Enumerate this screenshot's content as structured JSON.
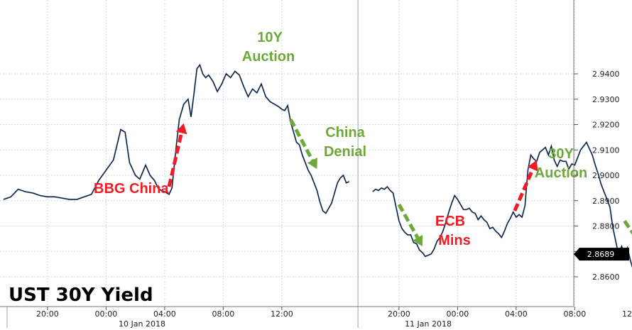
{
  "chart_data": {
    "type": "line",
    "title": "UST 30Y Yield",
    "ylim": [
      2.852,
      2.946
    ],
    "y_ticks": [
      2.86,
      2.87,
      2.88,
      2.89,
      2.9,
      2.91,
      2.92,
      2.93,
      2.94
    ],
    "y_tick_labels": [
      "2.8600",
      "2.8700",
      "2.8800",
      "2.8900",
      "2.9000",
      "2.9100",
      "2.9200",
      "2.9300",
      "2.9400"
    ],
    "x_tick_labels": [
      "20:00",
      "00:00",
      "04:00",
      "08:00",
      "12:00",
      "20:00",
      "00:00",
      "04:00",
      "08:00",
      "12:00"
    ],
    "date_labels": [
      "10 Jan 2018",
      "11 Jan 2018"
    ],
    "last_value_label": "2.8689",
    "grid": true,
    "series": [
      {
        "segments": [
          [
            [
              17.0,
              2.8905
            ],
            [
              17.5,
              2.8915
            ],
            [
              18.0,
              2.8945
            ],
            [
              18.5,
              2.8935
            ],
            [
              19.0,
              2.893
            ],
            [
              19.5,
              2.892
            ],
            [
              20.0,
              2.8915
            ],
            [
              20.5,
              2.8915
            ],
            [
              21.0,
              2.891
            ],
            [
              21.5,
              2.8905
            ],
            [
              22.0,
              2.8905
            ],
            [
              22.5,
              2.8915
            ],
            [
              23.0,
              2.8925
            ],
            [
              23.5,
              2.898
            ],
            [
              24.0,
              2.902
            ],
            [
              24.5,
              2.906
            ],
            [
              25.0,
              2.918
            ],
            [
              25.3,
              2.917
            ],
            [
              25.6,
              2.905
            ],
            [
              26.0,
              2.9
            ],
            [
              26.3,
              2.8985
            ],
            [
              26.7,
              2.904
            ],
            [
              27.0,
              2.9
            ],
            [
              27.3,
              2.898
            ],
            [
              27.6,
              2.8945
            ],
            [
              28.0,
              2.8935
            ],
            [
              28.3,
              2.8925
            ],
            [
              28.5,
              2.895
            ],
            [
              28.8,
              2.912
            ],
            [
              29.0,
              2.922
            ],
            [
              29.3,
              2.928
            ],
            [
              29.6,
              2.93
            ],
            [
              29.8,
              2.923
            ],
            [
              30.0,
              2.932
            ],
            [
              30.2,
              2.942
            ],
            [
              30.4,
              2.9435
            ],
            [
              30.6,
              2.94
            ],
            [
              30.8,
              2.9385
            ],
            [
              31.0,
              2.9395
            ],
            [
              31.3,
              2.937
            ],
            [
              31.6,
              2.933
            ],
            [
              31.9,
              2.936
            ],
            [
              32.2,
              2.94
            ],
            [
              32.5,
              2.9385
            ],
            [
              32.8,
              2.941
            ],
            [
              33.1,
              2.9395
            ],
            [
              33.4,
              2.935
            ],
            [
              33.7,
              2.931
            ],
            [
              34.0,
              2.934
            ],
            [
              34.3,
              2.9325
            ],
            [
              34.6,
              2.936
            ],
            [
              34.9,
              2.931
            ],
            [
              35.2,
              2.929
            ],
            [
              35.5,
              2.928
            ],
            [
              35.8,
              2.927
            ],
            [
              36.0,
              2.926
            ],
            [
              36.2,
              2.9255
            ],
            [
              36.4,
              2.9275
            ],
            [
              36.6,
              2.921
            ],
            [
              36.8,
              2.917
            ],
            [
              37.0,
              2.913
            ],
            [
              37.2,
              2.912
            ],
            [
              37.4,
              2.908
            ],
            [
              37.6,
              2.905
            ],
            [
              37.8,
              2.902
            ],
            [
              38.0,
              2.9
            ],
            [
              38.2,
              2.897
            ],
            [
              38.4,
              2.894
            ],
            [
              38.6,
              2.8895
            ],
            [
              38.8,
              2.886
            ],
            [
              39.0,
              2.885
            ],
            [
              39.2,
              2.887
            ],
            [
              39.4,
              2.889
            ],
            [
              39.6,
              2.893
            ],
            [
              39.8,
              2.897
            ],
            [
              40.0,
              2.899
            ],
            [
              40.2,
              2.9
            ],
            [
              40.4,
              2.897
            ],
            [
              40.6,
              2.8975
            ]
          ],
          [
            [
              42.2,
              2.8935
            ],
            [
              42.4,
              2.8945
            ],
            [
              42.6,
              2.894
            ],
            [
              42.8,
              2.895
            ],
            [
              43.0,
              2.8945
            ],
            [
              43.2,
              2.8955
            ],
            [
              43.4,
              2.894
            ],
            [
              43.6,
              2.893
            ],
            [
              43.8,
              2.8875
            ],
            [
              44.0,
              2.882
            ],
            [
              44.2,
              2.879
            ],
            [
              44.4,
              2.8775
            ],
            [
              44.6,
              2.8765
            ],
            [
              44.8,
              2.8765
            ],
            [
              45.0,
              2.8735
            ],
            [
              45.2,
              2.873
            ],
            [
              45.4,
              2.8705
            ],
            [
              45.6,
              2.8695
            ],
            [
              45.8,
              2.868
            ],
            [
              46.0,
              2.8685
            ],
            [
              46.2,
              2.869
            ],
            [
              46.4,
              2.871
            ],
            [
              46.6,
              2.874
            ],
            [
              46.8,
              2.8755
            ],
            [
              47.0,
              2.878
            ],
            [
              47.2,
              2.8815
            ],
            [
              47.4,
              2.8855
            ],
            [
              47.6,
              2.889
            ],
            [
              47.8,
              2.892
            ],
            [
              48.0,
              2.8905
            ],
            [
              48.2,
              2.8885
            ],
            [
              48.4,
              2.8865
            ],
            [
              48.6,
              2.8865
            ],
            [
              48.8,
              2.887
            ],
            [
              49.0,
              2.8855
            ],
            [
              49.2,
              2.885
            ],
            [
              49.4,
              2.8825
            ],
            [
              49.6,
              2.884
            ],
            [
              49.8,
              2.8825
            ],
            [
              50.0,
              2.8815
            ],
            [
              50.2,
              2.879
            ],
            [
              50.4,
              2.8795
            ],
            [
              50.6,
              2.878
            ],
            [
              50.8,
              2.877
            ],
            [
              51.0,
              2.8755
            ],
            [
              51.2,
              2.878
            ],
            [
              51.4,
              2.881
            ],
            [
              51.6,
              2.883
            ],
            [
              51.8,
              2.8855
            ],
            [
              52.0,
              2.8835
            ],
            [
              52.2,
              2.8845
            ],
            [
              52.4,
              2.8835
            ],
            [
              52.6,
              2.888
            ],
            [
              52.8,
              2.902
            ],
            [
              53.0,
              2.908
            ],
            [
              53.2,
              2.9065
            ],
            [
              53.4,
              2.9055
            ],
            [
              53.6,
              2.909
            ],
            [
              53.8,
              2.91
            ],
            [
              54.0,
              2.911
            ],
            [
              54.2,
              2.908
            ],
            [
              54.4,
              2.9115
            ],
            [
              54.6,
              2.906
            ],
            [
              54.8,
              2.9035
            ],
            [
              55.0,
              2.906
            ],
            [
              55.2,
              2.9055
            ],
            [
              55.4,
              2.9055
            ],
            [
              55.6,
              2.9025
            ],
            [
              55.8,
              2.9045
            ],
            [
              56.0,
              2.904
            ],
            [
              56.2,
              2.907
            ],
            [
              56.4,
              2.91
            ],
            [
              56.6,
              2.9115
            ],
            [
              56.8,
              2.913
            ],
            [
              57.0,
              2.9105
            ],
            [
              57.2,
              2.908
            ],
            [
              57.4,
              2.904
            ],
            [
              57.6,
              2.9005
            ],
            [
              57.8,
              2.8965
            ],
            [
              58.0,
              2.8935
            ],
            [
              58.2,
              2.8905
            ],
            [
              58.4,
              2.8875
            ],
            [
              58.6,
              2.8795
            ],
            [
              58.8,
              2.874
            ],
            [
              59.0,
              2.8685
            ],
            [
              59.2,
              2.872
            ],
            [
              59.4,
              2.869
            ],
            [
              59.6,
              2.8715
            ],
            [
              59.8,
              2.8665
            ],
            [
              60.0,
              2.8625
            ],
            [
              60.2,
              2.8605
            ],
            [
              60.4,
              2.8645
            ],
            [
              60.6,
              2.8655
            ],
            [
              60.8,
              2.8675
            ],
            [
              61.0,
              2.868
            ],
            [
              61.2,
              2.8675
            ],
            [
              61.4,
              2.8689
            ]
          ]
        ]
      }
    ],
    "annotations": [
      {
        "text": "BBG China",
        "color": "#ee1c25"
      },
      {
        "text": "10Y",
        "color": "#6ea83a"
      },
      {
        "text": "Auction",
        "color": "#6ea83a"
      },
      {
        "text": "China",
        "color": "#6ea83a"
      },
      {
        "text": "Denial",
        "color": "#6ea83a"
      },
      {
        "text": "ECB",
        "color": "#ee1c25"
      },
      {
        "text": "Mins",
        "color": "#ee1c25"
      },
      {
        "text": "30Y",
        "color": "#6ea83a"
      },
      {
        "text": "Auction",
        "color": "#6ea83a"
      }
    ],
    "colors": {
      "line": "#111111",
      "line_highlight": "#1f6bd6",
      "grid": "#cfd8e3",
      "last_badge": "#000000",
      "bullish": "#ee1c25",
      "bearish": "#6ea83a"
    }
  }
}
